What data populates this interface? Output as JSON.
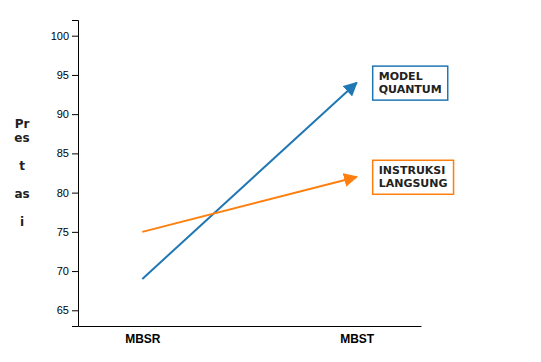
{
  "chart_data": {
    "type": "line",
    "categories": [
      "MBSR",
      "MBST"
    ],
    "series": [
      {
        "name": "MODEL\nQUANTUM",
        "values": [
          69,
          94
        ]
      },
      {
        "name": "INSTRUKSI\nLANGSUNG",
        "values": [
          75,
          82
        ]
      }
    ],
    "ylim": [
      63,
      102
    ],
    "yticks": [
      65,
      70,
      75,
      80,
      85,
      90,
      95,
      100
    ],
    "ylabel": "Pr\nes\n \nt\n \nas\n \ni"
  }
}
